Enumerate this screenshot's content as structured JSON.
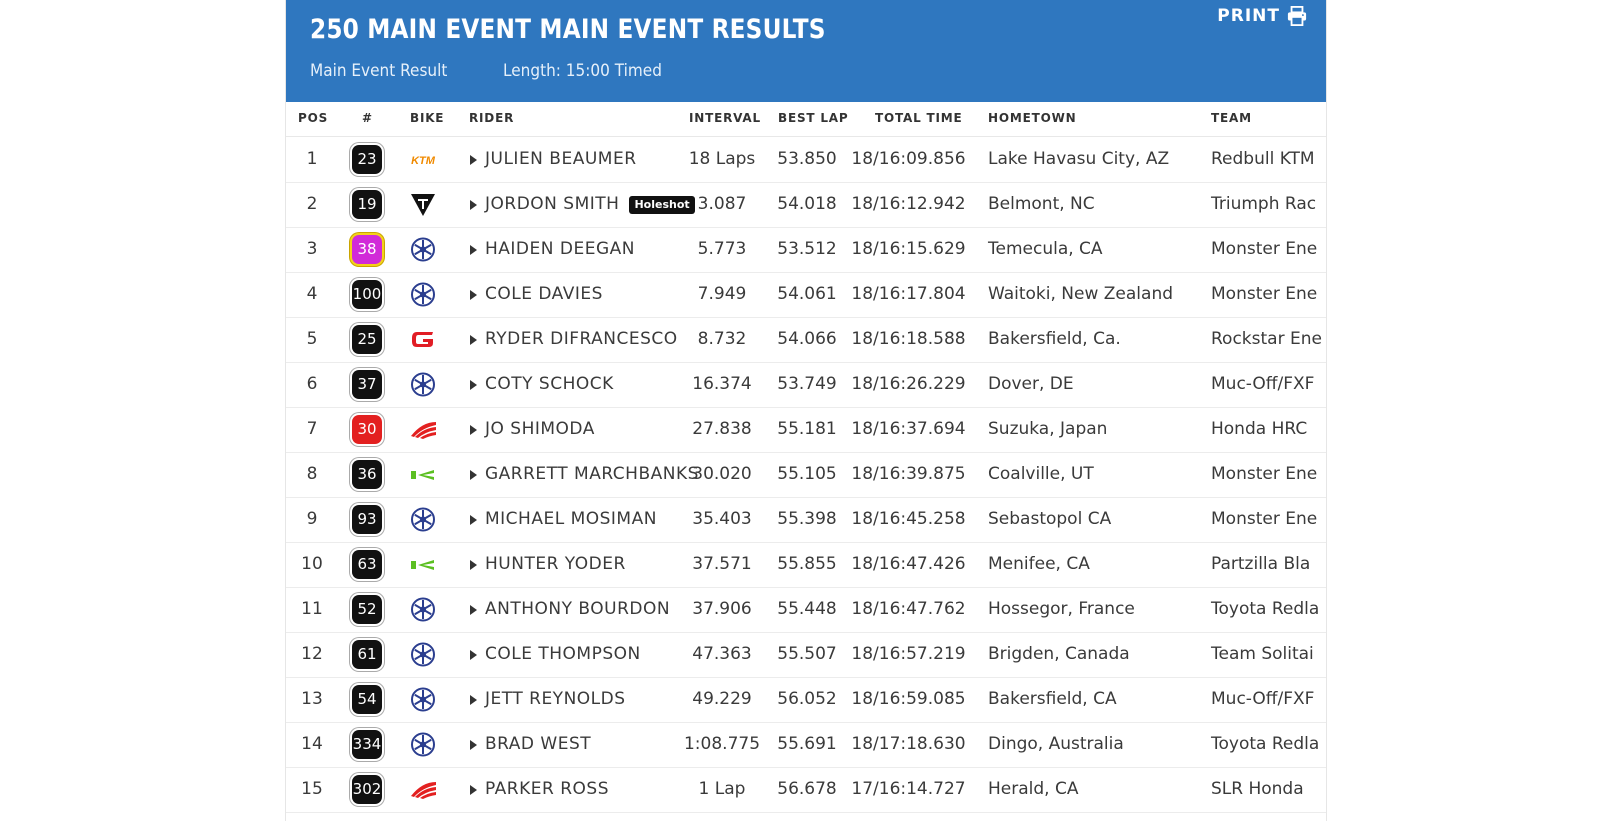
{
  "header": {
    "title": "250 MAIN EVENT MAIN EVENT RESULTS",
    "subtitle_left": "Main Event Result",
    "subtitle_right": "Length: 15:00 Timed",
    "print_label": "PRINT",
    "print_icon": "printer-icon"
  },
  "columns": [
    "POS",
    "#",
    "BIKE",
    "RIDER",
    "INTERVAL",
    "BEST LAP",
    "TOTAL TIME",
    "HOMETOWN",
    "TEAM"
  ],
  "colors": {
    "header_bg": "#2f77bf",
    "plate_default": "#111111",
    "plate_purple": "#d12ad8",
    "plate_red": "#e32020",
    "plate_yellow_border": "#f3d21a"
  },
  "rows": [
    {
      "pos": "1",
      "num": "23",
      "bike": "ktm-logo-icon",
      "rider": "JULIEN BEAUMER",
      "badge": "",
      "interval": "18 Laps",
      "best_lap": "53.850",
      "total": "18/16:09.856",
      "hometown": "Lake Havasu City, AZ",
      "team": "Redbull KTM"
    },
    {
      "pos": "2",
      "num": "19",
      "bike": "triumph-logo-icon",
      "rider": "JORDON SMITH",
      "badge": "Holeshot",
      "interval": "3.087",
      "best_lap": "54.018",
      "total": "18/16:12.942",
      "hometown": "Belmont, NC",
      "team": "Triumph Rac"
    },
    {
      "pos": "3",
      "num": "38",
      "bike": "yamaha-logo-icon",
      "rider": "HAIDEN DEEGAN",
      "badge": "",
      "interval": "5.773",
      "best_lap": "53.512",
      "total": "18/16:15.629",
      "hometown": "Temecula, CA",
      "team": "Monster Ene",
      "plate": "purple"
    },
    {
      "pos": "4",
      "num": "100",
      "bike": "yamaha-logo-icon",
      "rider": "COLE DAVIES",
      "badge": "",
      "interval": "7.949",
      "best_lap": "54.061",
      "total": "18/16:17.804",
      "hometown": "Waitoki, New Zealand",
      "team": "Monster Ene"
    },
    {
      "pos": "5",
      "num": "25",
      "bike": "gasgas-logo-icon",
      "rider": "RYDER DIFRANCESCO",
      "badge": "",
      "interval": "8.732",
      "best_lap": "54.066",
      "total": "18/16:18.588",
      "hometown": "Bakersfield, Ca.",
      "team": "Rockstar Ene"
    },
    {
      "pos": "6",
      "num": "37",
      "bike": "yamaha-logo-icon",
      "rider": "COTY SCHOCK",
      "badge": "",
      "interval": "16.374",
      "best_lap": "53.749",
      "total": "18/16:26.229",
      "hometown": "Dover, DE",
      "team": "Muc-Off/FXF"
    },
    {
      "pos": "7",
      "num": "30",
      "bike": "honda-logo-icon",
      "rider": "JO SHIMODA",
      "badge": "",
      "interval": "27.838",
      "best_lap": "55.181",
      "total": "18/16:37.694",
      "hometown": "Suzuka, Japan",
      "team": "Honda HRC",
      "plate": "red"
    },
    {
      "pos": "8",
      "num": "36",
      "bike": "kawasaki-logo-icon",
      "rider": "GARRETT MARCHBANKS",
      "badge": "",
      "interval": "30.020",
      "best_lap": "55.105",
      "total": "18/16:39.875",
      "hometown": "Coalville, UT",
      "team": "Monster Ene"
    },
    {
      "pos": "9",
      "num": "93",
      "bike": "yamaha-logo-icon",
      "rider": "MICHAEL MOSIMAN",
      "badge": "",
      "interval": "35.403",
      "best_lap": "55.398",
      "total": "18/16:45.258",
      "hometown": "Sebastopol CA",
      "team": "Monster Ene"
    },
    {
      "pos": "10",
      "num": "63",
      "bike": "kawasaki-logo-icon",
      "rider": "HUNTER YODER",
      "badge": "",
      "interval": "37.571",
      "best_lap": "55.855",
      "total": "18/16:47.426",
      "hometown": "Menifee, CA",
      "team": "Partzilla Bla"
    },
    {
      "pos": "11",
      "num": "52",
      "bike": "yamaha-logo-icon",
      "rider": "ANTHONY BOURDON",
      "badge": "",
      "interval": "37.906",
      "best_lap": "55.448",
      "total": "18/16:47.762",
      "hometown": "Hossegor, France",
      "team": "Toyota Redla"
    },
    {
      "pos": "12",
      "num": "61",
      "bike": "yamaha-logo-icon",
      "rider": "COLE THOMPSON",
      "badge": "",
      "interval": "47.363",
      "best_lap": "55.507",
      "total": "18/16:57.219",
      "hometown": "Brigden, Canada",
      "team": "Team Solitai"
    },
    {
      "pos": "13",
      "num": "54",
      "bike": "yamaha-logo-icon",
      "rider": "JETT REYNOLDS",
      "badge": "",
      "interval": "49.229",
      "best_lap": "56.052",
      "total": "18/16:59.085",
      "hometown": "Bakersfield, CA",
      "team": "Muc-Off/FXF"
    },
    {
      "pos": "14",
      "num": "334",
      "bike": "yamaha-logo-icon",
      "rider": "BRAD WEST",
      "badge": "",
      "interval": "1:08.775",
      "best_lap": "55.691",
      "total": "18/17:18.630",
      "hometown": "Dingo, Australia",
      "team": "Toyota Redla"
    },
    {
      "pos": "15",
      "num": "302",
      "bike": "honda-logo-icon",
      "rider": "PARKER ROSS",
      "badge": "",
      "interval": "1 Lap",
      "best_lap": "56.678",
      "total": "17/16:14.727",
      "hometown": "Herald, CA",
      "team": "SLR Honda"
    }
  ]
}
